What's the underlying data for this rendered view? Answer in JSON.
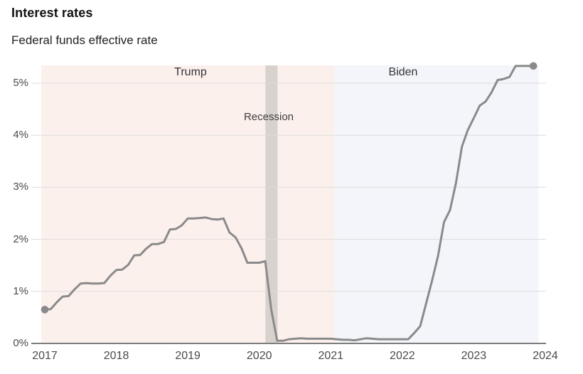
{
  "header": {
    "title": "Interest rates",
    "subtitle": "Federal funds effective rate"
  },
  "chart_data": {
    "type": "line",
    "title": "Interest rates",
    "subtitle": "Federal funds effective rate",
    "xlabel": "",
    "ylabel": "",
    "unit": "percent",
    "grid": true,
    "legend_position": "none",
    "ylim": [
      0,
      5.35
    ],
    "xlim_years": [
      2016.95,
      2024.02
    ],
    "yticks": [
      "0%",
      "1%",
      "2%",
      "3%",
      "4%",
      "5%"
    ],
    "ytick_values": [
      0,
      1,
      2,
      3,
      4,
      5
    ],
    "xticks": [
      "2017",
      "2018",
      "2019",
      "2020",
      "2021",
      "2022",
      "2023",
      "2024"
    ],
    "xtick_values": [
      2017,
      2018,
      2019,
      2020,
      2021,
      2022,
      2023,
      2024
    ],
    "line_color": "#8a8a8a",
    "gridline_color": "#dcdcdc",
    "axis_color": "#7d7d7d",
    "series": [
      {
        "name": "Federal funds effective rate",
        "start_month": "2017-01",
        "end_month": "2023-11",
        "frequency": "monthly",
        "monthly_values": [
          0.65,
          0.66,
          0.79,
          0.9,
          0.91,
          1.04,
          1.15,
          1.16,
          1.15,
          1.15,
          1.16,
          1.3,
          1.41,
          1.42,
          1.51,
          1.69,
          1.7,
          1.82,
          1.91,
          1.91,
          1.95,
          2.19,
          2.2,
          2.27,
          2.4,
          2.4,
          2.41,
          2.42,
          2.39,
          2.38,
          2.4,
          2.13,
          2.04,
          1.83,
          1.55,
          1.55,
          1.55,
          1.58,
          0.65,
          0.05,
          0.05,
          0.08,
          0.09,
          0.1,
          0.09,
          0.09,
          0.09,
          0.09,
          0.09,
          0.08,
          0.07,
          0.07,
          0.06,
          0.08,
          0.1,
          0.09,
          0.08,
          0.08,
          0.08,
          0.08,
          0.08,
          0.08,
          0.2,
          0.33,
          0.77,
          1.21,
          1.68,
          2.33,
          2.56,
          3.08,
          3.78,
          4.1,
          4.33,
          4.57,
          4.65,
          4.83,
          5.06,
          5.08,
          5.12,
          5.33,
          5.33,
          5.33,
          5.33
        ]
      }
    ],
    "endpoint_markers": [
      {
        "month": "2017-01",
        "value": 0.65
      },
      {
        "month": "2023-11",
        "value": 5.33
      }
    ],
    "annotations": {
      "bands": [
        {
          "label": "Trump",
          "start_year": 2016.95,
          "end_year": 2021.055,
          "color": "#fcf0ed"
        },
        {
          "label": "Biden",
          "start_year": 2021.055,
          "end_year": 2023.905,
          "color": "#f3f5fa"
        },
        {
          "label": "Recession",
          "start_year": 2020.085,
          "end_year": 2020.255,
          "color": "#d8d2ce"
        }
      ]
    }
  }
}
